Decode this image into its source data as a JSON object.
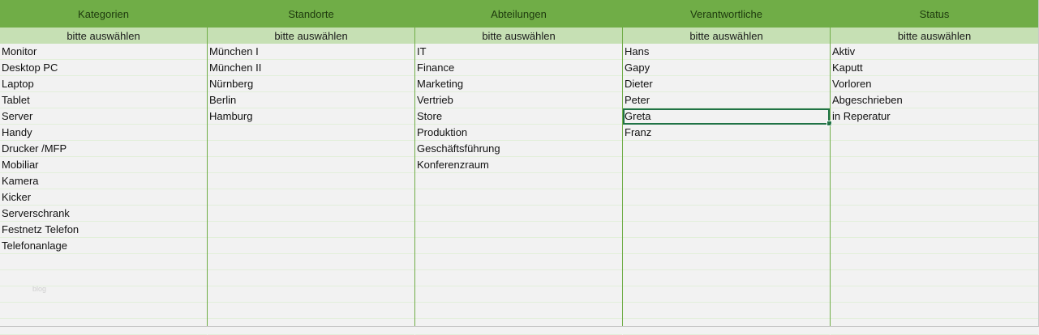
{
  "placeholder": "bitte auswählen",
  "watermark": "blog",
  "selected": {
    "column": 3,
    "row": 4
  },
  "columns": [
    {
      "header": "Kategorien",
      "items": [
        "Monitor",
        "Desktop PC",
        "Laptop",
        "Tablet",
        "Server",
        "Handy",
        "Drucker /MFP",
        "Mobiliar",
        "Kamera",
        "Kicker",
        "Serverschrank",
        "Festnetz Telefon",
        "Telefonanlage"
      ]
    },
    {
      "header": "Standorte",
      "items": [
        "München I",
        "München II",
        "Nürnberg",
        "Berlin",
        "Hamburg"
      ]
    },
    {
      "header": "Abteilungen",
      "items": [
        "IT",
        "Finance",
        "Marketing",
        "Vertrieb",
        "Store",
        "Produktion",
        "Geschäftsführung",
        "Konferenzraum"
      ]
    },
    {
      "header": "Verantwortliche",
      "items": [
        "Hans",
        "Gapy",
        "Dieter",
        "Peter",
        "Greta",
        "Franz"
      ]
    },
    {
      "header": "Status",
      "items": [
        "Aktiv",
        "Kaputt",
        "Vorloren",
        "Abgeschrieben",
        "in Reperatur"
      ]
    }
  ]
}
